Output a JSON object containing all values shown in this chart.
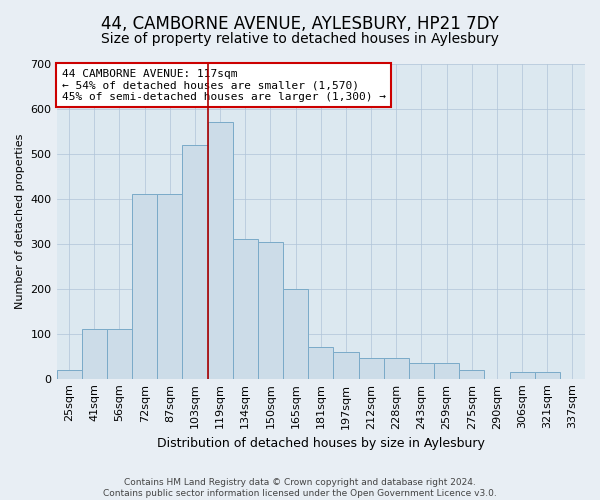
{
  "title": "44, CAMBORNE AVENUE, AYLESBURY, HP21 7DY",
  "subtitle": "Size of property relative to detached houses in Aylesbury",
  "xlabel": "Distribution of detached houses by size in Aylesbury",
  "ylabel": "Number of detached properties",
  "categories": [
    "25sqm",
    "41sqm",
    "56sqm",
    "72sqm",
    "87sqm",
    "103sqm",
    "119sqm",
    "134sqm",
    "150sqm",
    "165sqm",
    "181sqm",
    "197sqm",
    "212sqm",
    "228sqm",
    "243sqm",
    "259sqm",
    "275sqm",
    "290sqm",
    "306sqm",
    "321sqm",
    "337sqm"
  ],
  "values": [
    20,
    110,
    110,
    410,
    410,
    520,
    570,
    310,
    305,
    200,
    70,
    60,
    45,
    45,
    35,
    35,
    20,
    0,
    15,
    15,
    0
  ],
  "bar_color": "#ccdce8",
  "bar_edge_color": "#7aaac8",
  "vline_index": 6,
  "vline_color": "#aa0000",
  "annotation_box": {
    "text_line1": "44 CAMBORNE AVENUE: 117sqm",
    "text_line2": "← 54% of detached houses are smaller (1,570)",
    "text_line3": "45% of semi-detached houses are larger (1,300) →"
  },
  "ylim": [
    0,
    700
  ],
  "yticks": [
    0,
    100,
    200,
    300,
    400,
    500,
    600,
    700
  ],
  "footer_line1": "Contains HM Land Registry data © Crown copyright and database right 2024.",
  "footer_line2": "Contains public sector information licensed under the Open Government Licence v3.0.",
  "background_color": "#e8eef4",
  "plot_background_color": "#dce8f0",
  "title_fontsize": 12,
  "subtitle_fontsize": 10,
  "annotation_fontsize": 8,
  "ylabel_fontsize": 8,
  "xlabel_fontsize": 9,
  "tick_fontsize": 8,
  "footer_fontsize": 6.5
}
